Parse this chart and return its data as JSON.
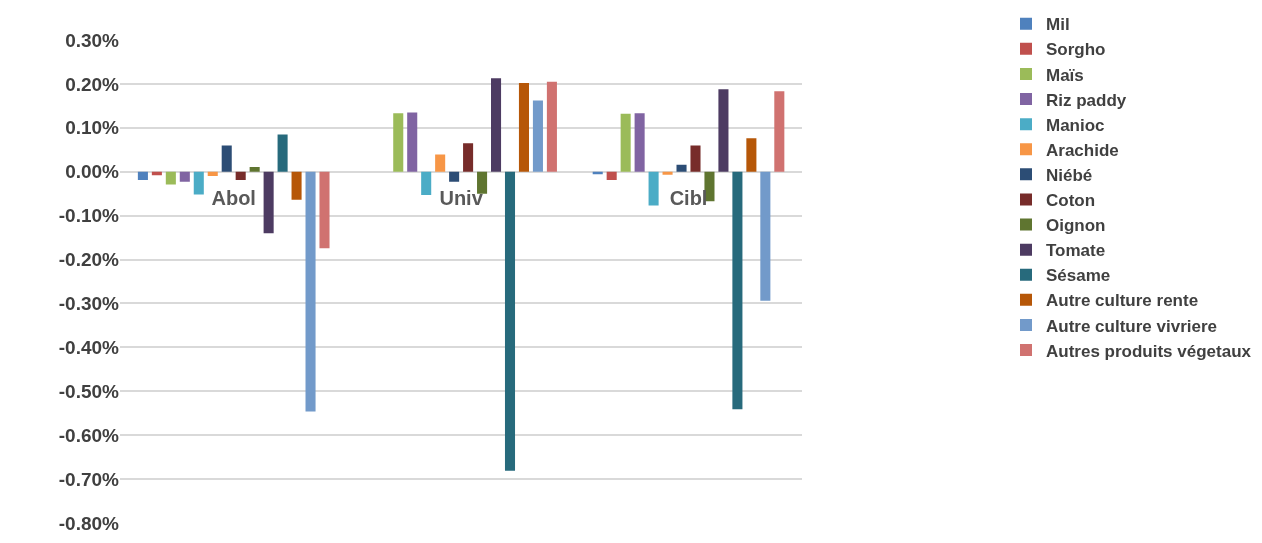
{
  "chart_data": {
    "type": "bar",
    "categories": [
      "Abol",
      "Univ",
      "Cibl"
    ],
    "series": [
      {
        "name": "Mil",
        "color": "#4f81bd",
        "values": [
          -0.019,
          0,
          -0.006
        ]
      },
      {
        "name": "Sorgho",
        "color": "#c0504d",
        "values": [
          -0.008,
          0,
          -0.019
        ]
      },
      {
        "name": "Maïs",
        "color": "#9bbb59",
        "values": [
          -0.029,
          0.133,
          0.132
        ]
      },
      {
        "name": "Riz paddy",
        "color": "#8064a2",
        "values": [
          -0.023,
          0.135,
          0.133
        ]
      },
      {
        "name": "Manioc",
        "color": "#4bacc6",
        "values": [
          -0.052,
          -0.053,
          -0.077
        ]
      },
      {
        "name": "Arachide",
        "color": "#f79646",
        "values": [
          -0.01,
          0.039,
          -0.007
        ]
      },
      {
        "name": "Niébé",
        "color": "#2c4d75",
        "values": [
          0.06,
          -0.023,
          0.016
        ]
      },
      {
        "name": "Coton",
        "color": "#772c2a",
        "values": [
          -0.019,
          0.065,
          0.06
        ]
      },
      {
        "name": "Oignon",
        "color": "#5f7530",
        "values": [
          0.011,
          -0.05,
          -0.067
        ]
      },
      {
        "name": "Tomate",
        "color": "#4d3b62",
        "values": [
          -0.14,
          0.213,
          0.188
        ]
      },
      {
        "name": "Sésame",
        "color": "#276a7c",
        "values": [
          0.085,
          -0.681,
          -0.541
        ]
      },
      {
        "name": "Autre culture rente",
        "color": "#b65708",
        "values": [
          -0.064,
          0.202,
          0.076
        ]
      },
      {
        "name": "Autre culture vivriere",
        "color": "#729aca",
        "values": [
          -0.546,
          0.162,
          -0.294
        ]
      },
      {
        "name": "Autres produits végetaux",
        "color": "#d07270",
        "values": [
          -0.174,
          0.205,
          0.183
        ]
      }
    ],
    "ylim": [
      -0.8,
      0.3
    ],
    "yticks": [
      {
        "value": 0.3,
        "label": "0.30%"
      },
      {
        "value": 0.2,
        "label": "0.20%"
      },
      {
        "value": 0.1,
        "label": "0.10%"
      },
      {
        "value": 0.0,
        "label": "0.00%"
      },
      {
        "value": -0.1,
        "label": "-0.10%"
      },
      {
        "value": -0.2,
        "label": "-0.20%"
      },
      {
        "value": -0.3,
        "label": "-0.30%"
      },
      {
        "value": -0.4,
        "label": "-0.40%"
      },
      {
        "value": -0.5,
        "label": "-0.50%"
      },
      {
        "value": -0.6,
        "label": "-0.60%"
      },
      {
        "value": -0.7,
        "label": "-0.70%"
      },
      {
        "value": -0.8,
        "label": "-0.80%"
      }
    ],
    "grid": "y",
    "legend": "right"
  }
}
